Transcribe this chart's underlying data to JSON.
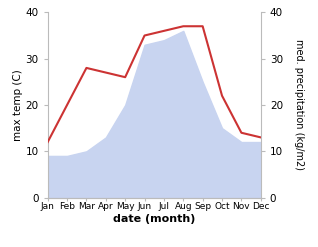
{
  "months": [
    "Jan",
    "Feb",
    "Mar",
    "Apr",
    "May",
    "Jun",
    "Jul",
    "Aug",
    "Sep",
    "Oct",
    "Nov",
    "Dec"
  ],
  "temperature": [
    12,
    20,
    28,
    27,
    26,
    35,
    36,
    37,
    37,
    22,
    14,
    13
  ],
  "precipitation": [
    9,
    9,
    10,
    13,
    20,
    33,
    34,
    36,
    25,
    15,
    12,
    12
  ],
  "temp_color": "#cc3333",
  "precip_fill_color": "#c8d4f0",
  "ylabel_left": "max temp (C)",
  "ylabel_right": "med. precipitation (kg/m2)",
  "xlabel": "date (month)",
  "ylim": [
    0,
    40
  ],
  "yticks": [
    0,
    10,
    20,
    30,
    40
  ]
}
